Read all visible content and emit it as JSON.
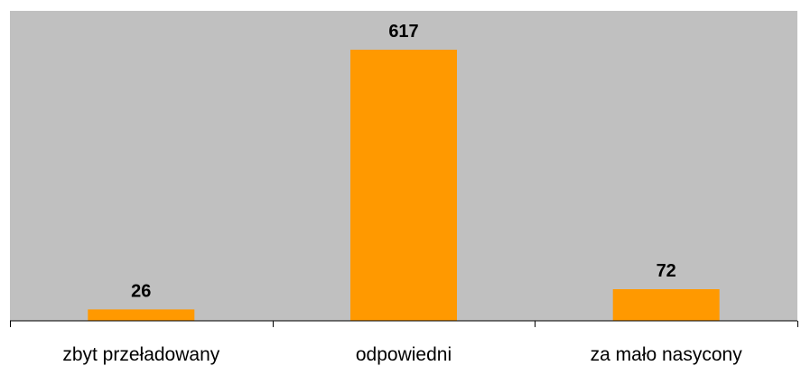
{
  "chart_data": {
    "type": "bar",
    "categories": [
      "zbyt przeładowany",
      "odpowiedni",
      "za mało nasycony"
    ],
    "values": [
      26,
      617,
      72
    ],
    "data_labels": [
      "26",
      "617",
      "72"
    ],
    "title": "",
    "xlabel": "",
    "ylabel": "",
    "ylim": [
      0,
      700
    ],
    "grid": false,
    "legend": "none"
  },
  "colors": {
    "bar": "#FF9900",
    "plot_background": "#C0C0C0",
    "axis": "#000000",
    "page_background": "#FFFFFF"
  }
}
